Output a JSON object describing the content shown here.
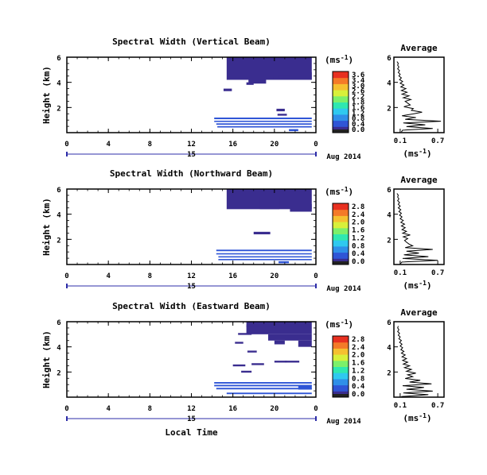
{
  "figure": {
    "xlabel": "Local Time",
    "colorbar_unit": "(ms",
    "colorbar_unit_exp": "-1",
    "colorbar_unit_close": ")",
    "colormap": [
      "#3a2d8f",
      "#2f55d6",
      "#2f8fe8",
      "#2fc9ef",
      "#2fe8b0",
      "#7cf06a",
      "#d8f03a",
      "#f5c030",
      "#f47a28",
      "#e83020"
    ]
  },
  "chart_data": [
    {
      "type": "heatmap",
      "title": "Spectral Width (Vertical Beam)",
      "ylabel": "Height (km)",
      "xlim": [
        0,
        24
      ],
      "ylim": [
        0,
        6
      ],
      "x_ticks": [
        "0",
        "4",
        "8",
        "12",
        "16",
        "20",
        "0"
      ],
      "y_ticks": [
        "6",
        "4",
        "2"
      ],
      "date_ticks": [
        "15"
      ],
      "date_label": "Aug 2014",
      "colorbar_ticks": [
        "3.6",
        "3.4",
        "3.0",
        "2.6",
        "2.2",
        "1.8",
        "1.6",
        "1.2",
        "0.8",
        "0.4",
        "0.0"
      ],
      "cells": [
        {
          "t0": 15.4,
          "t1": 23.6,
          "h0": 4.2,
          "h1": 6.0,
          "w": 0.0
        },
        {
          "t0": 17.5,
          "t1": 19.2,
          "h0": 4.2,
          "h1": 3.9,
          "w": 0.0
        },
        {
          "t0": 19.2,
          "t1": 19.9,
          "h0": 4.2,
          "h1": 4.4,
          "w": 0.0
        },
        {
          "t0": 20.4,
          "t1": 21.5,
          "h0": 4.6,
          "h1": 4.3,
          "w": 0.0
        },
        {
          "t0": 22.3,
          "t1": 23.6,
          "h0": 4.2,
          "h1": 4.8,
          "w": 0.0
        },
        {
          "t0": 15.1,
          "t1": 15.9,
          "h0": 3.5,
          "h1": 3.3,
          "w": 0.0
        },
        {
          "t0": 17.3,
          "t1": 18.0,
          "h0": 4.0,
          "h1": 3.8,
          "w": 0.0
        },
        {
          "t0": 20.2,
          "t1": 21.0,
          "h0": 1.9,
          "h1": 1.7,
          "w": 0.0
        },
        {
          "t0": 20.3,
          "t1": 21.2,
          "h0": 1.5,
          "h1": 1.35,
          "w": 0.0
        },
        {
          "t0": 14.2,
          "t1": 23.6,
          "h0": 1.2,
          "h1": 1.07,
          "w": 0.4
        },
        {
          "t0": 14.2,
          "t1": 23.6,
          "h0": 0.95,
          "h1": 0.85,
          "w": 0.4
        },
        {
          "t0": 14.4,
          "t1": 23.6,
          "h0": 0.74,
          "h1": 0.63,
          "w": 0.4
        },
        {
          "t0": 14.5,
          "t1": 23.6,
          "h0": 0.52,
          "h1": 0.41,
          "w": 0.4
        },
        {
          "t0": 21.4,
          "t1": 22.3,
          "h0": 0.28,
          "h1": 0.12,
          "w": 0.4
        }
      ],
      "average": {
        "title": "Average",
        "xlabel_main": "(ms",
        "xlabel_exp": "-1",
        "xlabel_close": ")",
        "x_ticks": [
          "0.1",
          "0.7"
        ],
        "y_ticks": [
          "6",
          "4",
          "2"
        ],
        "xlim": [
          0,
          0.8
        ],
        "profile": [
          0.12,
          0.14,
          0.62,
          0.2,
          0.5,
          0.15,
          0.75,
          0.18,
          0.35,
          0.13,
          0.3,
          0.45,
          0.28,
          0.31,
          0.16,
          0.26,
          0.22,
          0.18,
          0.27,
          0.15,
          0.24,
          0.13,
          0.21,
          0.12,
          0.19,
          0.11,
          0.16,
          0.1,
          0.14,
          0.09,
          0.12,
          0.08,
          0.1,
          0.07,
          0.09,
          0.06,
          0.08,
          0.06,
          0.07,
          0.05
        ]
      }
    },
    {
      "type": "heatmap",
      "title": "Spectral Width (Northward Beam)",
      "ylabel": "Height (km)",
      "xlim": [
        0,
        24
      ],
      "ylim": [
        0,
        6
      ],
      "x_ticks": [
        "0",
        "4",
        "8",
        "12",
        "16",
        "20",
        "0"
      ],
      "y_ticks": [
        "6",
        "4",
        "2"
      ],
      "date_ticks": [
        "15"
      ],
      "date_label": "Aug 2014",
      "colorbar_ticks": [
        "2.8",
        "2.4",
        "2.0",
        "1.6",
        "1.2",
        "0.8",
        "0.4",
        "0.0"
      ],
      "cells": [
        {
          "t0": 15.4,
          "t1": 23.6,
          "h0": 4.4,
          "h1": 6.0,
          "w": 0.0
        },
        {
          "t0": 18.6,
          "t1": 20.5,
          "h0": 4.4,
          "h1": 5.4,
          "w": 0.0
        },
        {
          "t0": 21.5,
          "t1": 23.6,
          "h0": 4.8,
          "h1": 4.2,
          "w": 0.0
        },
        {
          "t0": 18.0,
          "t1": 19.6,
          "h0": 2.6,
          "h1": 2.4,
          "w": 0.0
        },
        {
          "t0": 14.4,
          "t1": 23.6,
          "h0": 1.18,
          "h1": 1.06,
          "w": 0.4
        },
        {
          "t0": 14.4,
          "t1": 23.6,
          "h0": 0.9,
          "h1": 0.8,
          "w": 0.4
        },
        {
          "t0": 14.6,
          "t1": 23.6,
          "h0": 0.66,
          "h1": 0.56,
          "w": 0.4
        },
        {
          "t0": 14.6,
          "t1": 23.6,
          "h0": 0.44,
          "h1": 0.34,
          "w": 0.4
        },
        {
          "t0": 20.4,
          "t1": 21.4,
          "h0": 0.26,
          "h1": 0.1,
          "w": 0.4
        }
      ],
      "average": {
        "title": "Average",
        "xlabel_main": "(ms",
        "xlabel_exp": "-1",
        "xlabel_close": ")",
        "x_ticks": [
          "0.1",
          "0.7"
        ],
        "y_ticks": [
          "6",
          "4",
          "2"
        ],
        "xlim": [
          0,
          0.8
        ],
        "profile": [
          0.1,
          0.13,
          0.7,
          0.14,
          0.55,
          0.16,
          0.4,
          0.2,
          0.62,
          0.18,
          0.3,
          0.24,
          0.2,
          0.17,
          0.22,
          0.15,
          0.26,
          0.14,
          0.2,
          0.13,
          0.18,
          0.12,
          0.17,
          0.11,
          0.15,
          0.1,
          0.13,
          0.09,
          0.12,
          0.08,
          0.11,
          0.07,
          0.1,
          0.07,
          0.09,
          0.06,
          0.08,
          0.06,
          0.07,
          0.05
        ]
      }
    },
    {
      "type": "heatmap",
      "title": "Spectral Width (Eastward Beam)",
      "ylabel": "Height (km)",
      "xlim": [
        0,
        24
      ],
      "ylim": [
        0,
        6
      ],
      "x_ticks": [
        "0",
        "4",
        "8",
        "12",
        "16",
        "20",
        "0"
      ],
      "y_ticks": [
        "6",
        "4",
        "2"
      ],
      "date_ticks": [
        "15"
      ],
      "date_label": "Aug 2014",
      "colorbar_ticks": [
        "2.8",
        "2.4",
        "2.0",
        "1.6",
        "1.2",
        "0.8",
        "0.4",
        "0.0"
      ],
      "cells": [
        {
          "t0": 17.3,
          "t1": 23.6,
          "h0": 5.0,
          "h1": 6.0,
          "w": 0.0
        },
        {
          "t0": 19.4,
          "t1": 23.6,
          "h0": 4.5,
          "h1": 5.0,
          "w": 0.0
        },
        {
          "t0": 17.3,
          "t1": 18.5,
          "h0": 5.7,
          "h1": 5.6,
          "w": 0.0
        },
        {
          "t0": 16.5,
          "t1": 17.8,
          "h0": 5.1,
          "h1": 4.95,
          "w": 0.0
        },
        {
          "t0": 20.0,
          "t1": 21.0,
          "h0": 4.5,
          "h1": 4.2,
          "w": 0.0
        },
        {
          "t0": 22.3,
          "t1": 23.6,
          "h0": 4.5,
          "h1": 4.0,
          "w": 0.0
        },
        {
          "t0": 16.2,
          "t1": 17.0,
          "h0": 4.4,
          "h1": 4.25,
          "w": 0.0
        },
        {
          "t0": 17.4,
          "t1": 18.3,
          "h0": 3.7,
          "h1": 3.55,
          "w": 0.0
        },
        {
          "t0": 16.0,
          "t1": 17.2,
          "h0": 2.6,
          "h1": 2.45,
          "w": 0.0
        },
        {
          "t0": 17.8,
          "t1": 19.0,
          "h0": 2.7,
          "h1": 2.55,
          "w": 0.0
        },
        {
          "t0": 16.8,
          "t1": 17.8,
          "h0": 2.1,
          "h1": 1.95,
          "w": 0.0
        },
        {
          "t0": 20.0,
          "t1": 21.2,
          "h0": 2.9,
          "h1": 2.75,
          "w": 0.0
        },
        {
          "t0": 21.0,
          "t1": 22.4,
          "h0": 2.9,
          "h1": 2.75,
          "w": 0.0
        },
        {
          "t0": 14.2,
          "t1": 23.6,
          "h0": 1.2,
          "h1": 1.08,
          "w": 0.4
        },
        {
          "t0": 14.2,
          "t1": 23.6,
          "h0": 0.98,
          "h1": 0.86,
          "w": 0.4
        },
        {
          "t0": 14.4,
          "t1": 23.6,
          "h0": 0.74,
          "h1": 0.62,
          "w": 0.4
        },
        {
          "t0": 15.4,
          "t1": 23.6,
          "h0": 0.36,
          "h1": 0.24,
          "w": 0.4
        },
        {
          "t0": 22.3,
          "t1": 23.6,
          "h0": 0.96,
          "h1": 0.6,
          "w": 0.4
        }
      ],
      "average": {
        "title": "Average",
        "xlabel_main": "(ms",
        "xlabel_exp": "-1",
        "xlabel_close": ")",
        "x_ticks": [
          "0.1",
          "0.7"
        ],
        "y_ticks": [
          "6",
          "4",
          "2"
        ],
        "xlim": [
          0,
          0.8
        ],
        "profile": [
          0.12,
          0.55,
          0.15,
          0.62,
          0.2,
          0.48,
          0.14,
          0.6,
          0.25,
          0.42,
          0.18,
          0.3,
          0.22,
          0.35,
          0.2,
          0.28,
          0.17,
          0.25,
          0.15,
          0.22,
          0.14,
          0.2,
          0.13,
          0.18,
          0.12,
          0.16,
          0.11,
          0.14,
          0.1,
          0.13,
          0.09,
          0.12,
          0.08,
          0.1,
          0.07,
          0.09,
          0.06,
          0.08,
          0.06,
          0.07
        ]
      }
    }
  ]
}
